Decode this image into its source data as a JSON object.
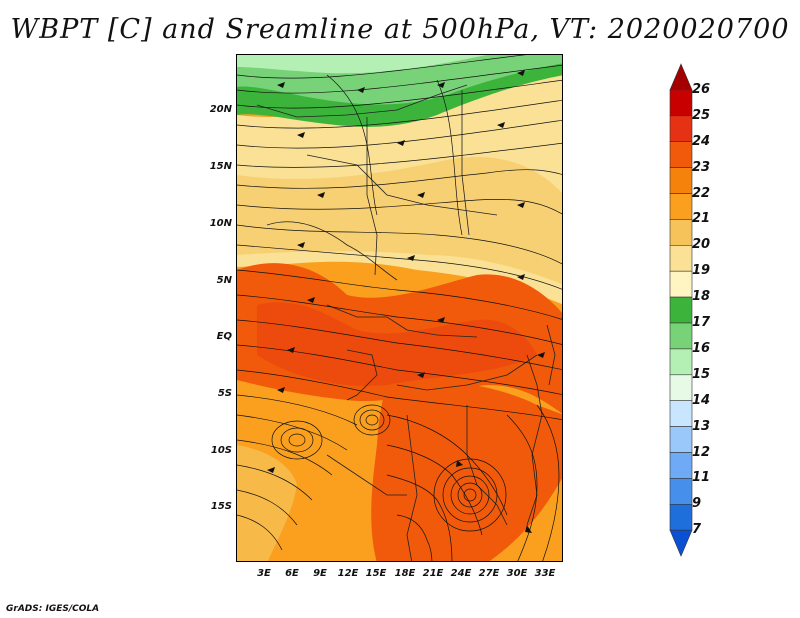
{
  "title": "WBPT [C] and Sreamline at 500hPa, VT: 2020020700",
  "credit": "GrADS: IGES/COLA",
  "lat_labels": [
    "20N",
    "15N",
    "10N",
    "5N",
    "EQ",
    "5S",
    "10S",
    "15S"
  ],
  "lon_labels": [
    "3E",
    "6E",
    "9E",
    "12E",
    "15E",
    "18E",
    "21E",
    "24E",
    "27E",
    "30E",
    "33E"
  ],
  "colorbar": {
    "labels": [
      "26",
      "25",
      "24",
      "23",
      "22",
      "21",
      "20",
      "19",
      "18",
      "17",
      "16",
      "15",
      "14",
      "13",
      "12",
      "11",
      "9",
      "7"
    ],
    "colors": [
      "#a50000",
      "#c80000",
      "#e63214",
      "#f05a0a",
      "#f5820a",
      "#faa01e",
      "#f5c35a",
      "#fae196",
      "#fff5c3",
      "#3cb43c",
      "#78d278",
      "#b4f0b4",
      "#e6fae6",
      "#c8e6ff",
      "#9ac8fa",
      "#6eaaf5",
      "#4690eb",
      "#1e6edc",
      "#0a50d2"
    ]
  },
  "map_data": {
    "field": "Wet-bulb potential temperature (C) at 500hPa",
    "valid_time": "2020020700",
    "lat_range": [
      -20,
      24
    ],
    "lon_range": [
      0,
      35
    ],
    "features": {
      "cyclonic_vortex_center": {
        "lat": -14,
        "lon": 24
      },
      "anticyclonic_swirl": {
        "lat": -8,
        "lon": 15
      },
      "warm_core_region": "equatorial band 3S-3N and southern interior 6S-20S, WBPT 22-23",
      "cool_region": "north of 18N, WBPT 17-18"
    }
  }
}
